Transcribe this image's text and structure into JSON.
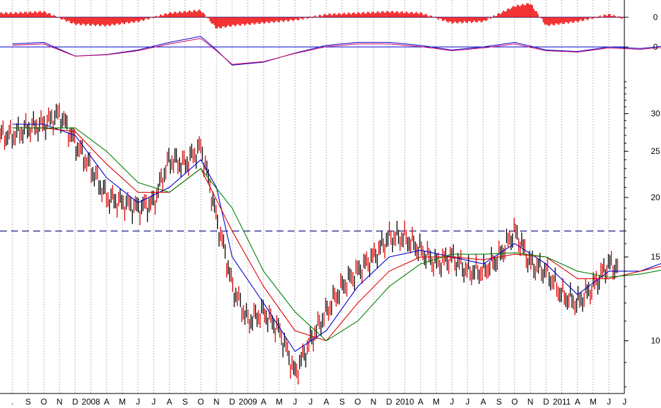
{
  "chart_data": {
    "type": "line",
    "title": "",
    "xlabel": "",
    "ylabel": "",
    "scale": "log",
    "ylim": [
      7.8,
      36
    ],
    "yticks": [
      10,
      15,
      20,
      25,
      30
    ],
    "resistance_level": 17,
    "x_ticks": [
      ".",
      "S",
      "O",
      "N",
      "D",
      "2008",
      "A",
      "M",
      "J",
      "J",
      "A",
      "S",
      "O",
      "N",
      "D",
      "2009",
      "A",
      "M",
      "J",
      "J",
      "A",
      "S",
      "O",
      "N",
      "D",
      "2010",
      "A",
      "M",
      "J",
      "J",
      "A",
      "S",
      "O",
      "N",
      "D",
      "2011",
      "A",
      "M",
      "J",
      "J"
    ],
    "series": [
      {
        "name": "",
        "color": "#000000",
        "x": [
          "2007-08",
          "2007-09",
          "2007-10",
          "2007-11",
          "2007-12",
          "2008-01",
          "2008-02",
          "2008-03",
          "2008-04",
          "2008-05",
          "2008-06",
          "2008-07",
          "2008-08",
          "2008-09",
          "2008-10",
          "2008-11",
          "2008-12",
          "2009-01",
          "2009-02",
          "2009-03",
          "2009-04",
          "2009-05",
          "2009-06",
          "2009-07",
          "2009-08",
          "2009-09",
          "2009-10",
          "2009-11",
          "2009-12",
          "2010-01",
          "2010-02",
          "2010-03",
          "2010-04",
          "2010-05",
          "2010-06",
          "2010-07",
          "2010-08",
          "2010-09",
          "2010-10",
          "2010-11",
          "2010-12",
          "2011-01",
          "2011-02",
          "2011-03",
          "2011-04",
          "2011-05",
          "2011-06"
        ],
        "values": [
          27,
          28,
          28.5,
          30,
          26,
          23,
          20,
          19.5,
          19,
          19.5,
          24,
          23.5,
          25.5,
          18,
          13,
          11,
          11.5,
          10.5,
          8.5,
          10,
          11.5,
          13,
          14,
          15,
          16.5,
          16.5,
          15.5,
          14.5,
          15,
          14,
          14,
          15,
          17,
          14.5,
          14,
          12.5,
          12,
          13,
          14.5,
          14,
          14,
          14,
          15.5,
          15.5,
          15.5,
          16.5,
          16.5
        ]
      },
      {
        "name": "",
        "color": "#0000cc",
        "x": [
          "2007-08",
          "2007-10",
          "2007-12",
          "2008-02",
          "2008-04",
          "2008-06",
          "2008-08",
          "2008-09",
          "2008-10",
          "2008-12",
          "2009-02",
          "2009-04",
          "2009-06",
          "2009-08",
          "2009-10",
          "2009-12",
          "2010-02",
          "2010-04",
          "2010-06",
          "2010-08",
          "2010-10",
          "2010-12",
          "2011-02",
          "2011-04",
          "2011-06"
        ],
        "values": [
          28.5,
          28.5,
          27,
          22,
          19.5,
          21,
          24,
          21,
          15,
          12,
          9.5,
          10.5,
          13,
          15,
          15.5,
          15,
          14.5,
          16,
          14.5,
          12.5,
          14,
          14,
          14.8,
          15.5,
          16
        ]
      },
      {
        "name": "",
        "color": "#dd0000",
        "x": [
          "2007-08",
          "2007-10",
          "2007-12",
          "2008-02",
          "2008-04",
          "2008-06",
          "2008-08",
          "2008-10",
          "2008-12",
          "2009-02",
          "2009-04",
          "2009-06",
          "2009-08",
          "2009-10",
          "2009-12",
          "2010-02",
          "2010-04",
          "2010-06",
          "2010-08",
          "2010-10",
          "2010-12",
          "2011-02",
          "2011-04",
          "2011-06"
        ],
        "values": [
          28,
          28,
          27.5,
          23.5,
          20.5,
          20.5,
          23,
          17,
          13,
          10.5,
          10,
          12,
          14,
          15,
          15,
          14.8,
          15.2,
          15,
          13.5,
          13.5,
          14,
          14.5,
          15,
          15.8
        ]
      },
      {
        "name": "",
        "color": "#008000",
        "x": [
          "2007-08",
          "2007-10",
          "2007-12",
          "2008-02",
          "2008-04",
          "2008-06",
          "2008-08",
          "2008-10",
          "2008-12",
          "2009-02",
          "2009-04",
          "2009-06",
          "2009-08",
          "2009-10",
          "2009-12",
          "2010-02",
          "2010-04",
          "2010-06",
          "2010-08",
          "2010-10",
          "2010-12",
          "2011-02",
          "2011-04",
          "2011-06"
        ],
        "values": [
          28,
          28,
          28,
          25,
          21.5,
          20.5,
          23,
          19,
          14,
          11.5,
          10,
          11,
          13,
          14.5,
          15.2,
          15.2,
          15.3,
          15,
          14,
          13.6,
          13.8,
          14.2,
          14.8,
          15.5
        ]
      }
    ],
    "indicator_top": {
      "type": "histogram",
      "color": "#ee0000",
      "zero_label": "0",
      "x": [
        "2007-08",
        "2007-10",
        "2007-12",
        "2008-02",
        "2008-04",
        "2008-06",
        "2008-08",
        "2008-09",
        "2008-10",
        "2008-12",
        "2009-02",
        "2009-04",
        "2009-06",
        "2009-08",
        "2009-10",
        "2009-12",
        "2010-02",
        "2010-04",
        "2010-05",
        "2010-06",
        "2010-08",
        "2010-10",
        "2010-12",
        "2011-02",
        "2011-04",
        "2011-06"
      ],
      "values": [
        0.3,
        0.4,
        -0.5,
        -0.6,
        -0.3,
        0.3,
        0.5,
        -0.8,
        -0.6,
        -0.4,
        -0.2,
        0.2,
        0.3,
        0.4,
        0.3,
        -0.4,
        -0.3,
        0.8,
        1.0,
        -0.6,
        -0.3,
        0.2,
        -0.4,
        -0.2,
        0.5,
        -0.5
      ]
    },
    "indicator_mid": {
      "type": "line",
      "zero_label": "0",
      "colors": [
        "#0000cc",
        "#cc0066"
      ],
      "x": [
        "2007-08",
        "2007-10",
        "2007-12",
        "2008-02",
        "2008-04",
        "2008-06",
        "2008-08",
        "2008-09",
        "2008-10",
        "2008-12",
        "2009-02",
        "2009-04",
        "2009-06",
        "2009-08",
        "2009-10",
        "2009-12",
        "2010-02",
        "2010-04",
        "2010-06",
        "2010-08",
        "2010-10",
        "2010-12",
        "2011-02",
        "2011-04",
        "2011-06"
      ],
      "values": [
        0.2,
        0.3,
        -0.6,
        -0.5,
        -0.2,
        0.3,
        0.7,
        -0.2,
        -1.2,
        -1.0,
        -0.4,
        0.1,
        0.3,
        0.3,
        0.1,
        -0.2,
        0.0,
        0.3,
        -0.2,
        -0.3,
        0.0,
        -0.1,
        0.1,
        0.0,
        0.1
      ]
    }
  }
}
